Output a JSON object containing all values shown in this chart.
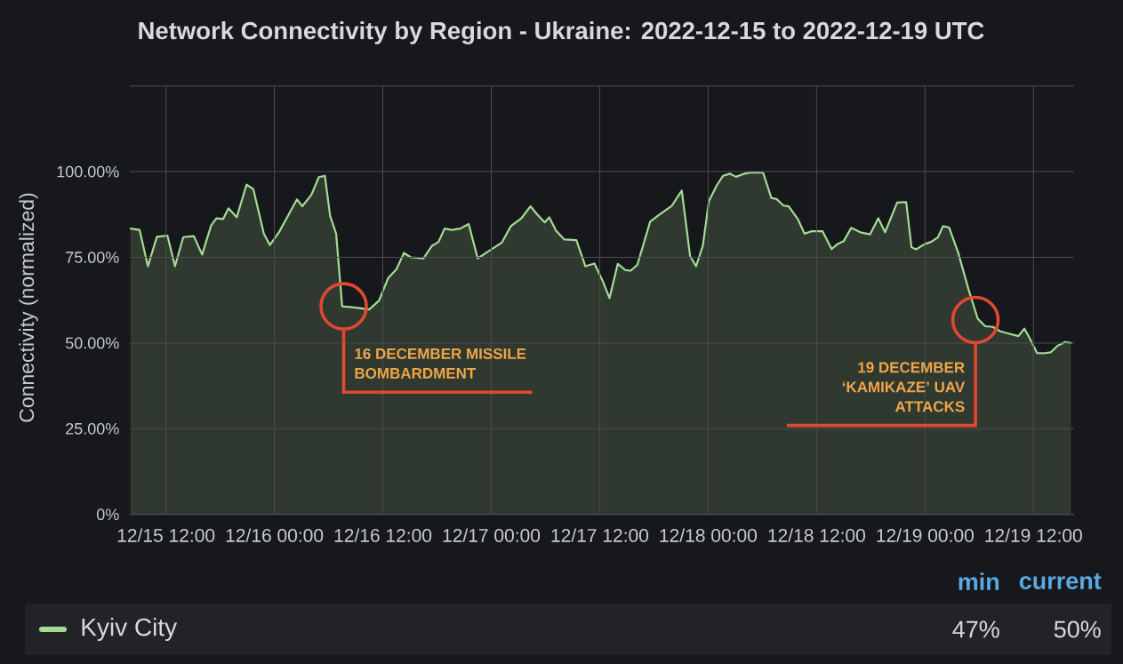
{
  "chart_data": {
    "type": "area",
    "title": "Network Connectivity by Region - Ukraine: 2022-12-15 to 2022-12-19 UTC",
    "ylabel": "Connectivity (normalized)",
    "x": [
      "2022-12-15T08:05",
      "2022-12-15T09:05",
      "2022-12-15T10:00",
      "2022-12-15T11:00",
      "2022-12-15T12:10",
      "2022-12-15T13:00",
      "2022-12-15T13:55",
      "2022-12-15T15:05",
      "2022-12-15T16:00",
      "2022-12-15T17:00",
      "2022-12-15T17:35",
      "2022-12-15T18:20",
      "2022-12-15T18:55",
      "2022-12-15T19:50",
      "2022-12-15T20:55",
      "2022-12-15T21:40",
      "2022-12-15T22:50",
      "2022-12-15T23:30",
      "2022-12-16T00:30",
      "2022-12-16T02:30",
      "2022-12-16T03:05",
      "2022-12-16T04:05",
      "2022-12-16T04:55",
      "2022-12-16T05:35",
      "2022-12-16T06:10",
      "2022-12-16T06:50",
      "2022-12-16T07:30",
      "2022-12-16T08:50",
      "2022-12-16T10:30",
      "2022-12-16T11:35",
      "2022-12-16T12:35",
      "2022-12-16T13:30",
      "2022-12-16T14:20",
      "2022-12-16T15:05",
      "2022-12-16T16:30",
      "2022-12-16T17:25",
      "2022-12-16T18:10",
      "2022-12-16T18:50",
      "2022-12-16T19:35",
      "2022-12-16T20:35",
      "2022-12-16T21:30",
      "2022-12-16T22:30",
      "2022-12-16T23:40",
      "2022-12-17T01:10",
      "2022-12-17T02:10",
      "2022-12-17T03:20",
      "2022-12-17T04:20",
      "2022-12-17T05:05",
      "2022-12-17T05:55",
      "2022-12-17T06:25",
      "2022-12-17T07:10",
      "2022-12-17T08:05",
      "2022-12-17T09:25",
      "2022-12-17T10:25",
      "2022-12-17T11:25",
      "2022-12-17T12:20",
      "2022-12-17T13:05",
      "2022-12-17T14:00",
      "2022-12-17T14:50",
      "2022-12-17T15:25",
      "2022-12-17T16:10",
      "2022-12-17T17:35",
      "2022-12-17T18:25",
      "2022-12-17T20:00",
      "2022-12-17T21:05",
      "2022-12-17T22:00",
      "2022-12-17T22:40",
      "2022-12-17T23:25",
      "2022-12-18T00:05",
      "2022-12-18T01:00",
      "2022-12-18T01:40",
      "2022-12-18T02:25",
      "2022-12-18T03:05",
      "2022-12-18T04:00",
      "2022-12-18T04:50",
      "2022-12-18T06:05",
      "2022-12-18T07:00",
      "2022-12-18T07:35",
      "2022-12-18T08:20",
      "2022-12-18T08:55",
      "2022-12-18T09:55",
      "2022-12-18T10:40",
      "2022-12-18T11:25",
      "2022-12-18T12:40",
      "2022-12-18T13:40",
      "2022-12-18T14:20",
      "2022-12-18T15:00",
      "2022-12-18T15:50",
      "2022-12-18T16:50",
      "2022-12-18T17:55",
      "2022-12-18T18:50",
      "2022-12-18T19:35",
      "2022-12-18T20:55",
      "2022-12-18T21:55",
      "2022-12-18T22:30",
      "2022-12-18T23:00",
      "2022-12-18T23:55",
      "2022-12-19T00:40",
      "2022-12-19T01:25",
      "2022-12-19T02:00",
      "2022-12-19T02:40",
      "2022-12-19T03:40",
      "2022-12-19T04:50",
      "2022-12-19T05:50",
      "2022-12-19T06:40",
      "2022-12-19T07:30",
      "2022-12-19T08:20",
      "2022-12-19T09:20",
      "2022-12-19T10:20",
      "2022-12-19T11:00",
      "2022-12-19T11:35",
      "2022-12-19T12:25",
      "2022-12-19T13:05",
      "2022-12-19T13:55",
      "2022-12-19T14:40",
      "2022-12-19T15:30",
      "2022-12-19T16:10"
    ],
    "series": [
      {
        "name": "Kyiv City",
        "color": "#a3dc95",
        "values": [
          83.4,
          83.0,
          72.4,
          81.0,
          81.3,
          72.4,
          80.9,
          81.2,
          75.8,
          84.3,
          86.4,
          86.2,
          89.3,
          86.7,
          96.2,
          94.9,
          81.9,
          78.6,
          82.3,
          91.9,
          89.9,
          93.2,
          98.4,
          98.8,
          87.1,
          81.9,
          60.7,
          60.4,
          59.8,
          62.4,
          68.9,
          71.5,
          76.3,
          75.0,
          74.7,
          78.3,
          79.5,
          83.4,
          83.0,
          83.4,
          84.7,
          74.7,
          76.7,
          79.3,
          84.1,
          86.4,
          89.9,
          87.5,
          85.2,
          86.7,
          82.8,
          80.2,
          80.0,
          72.4,
          73.2,
          68.1,
          63.1,
          73.1,
          71.3,
          71.1,
          72.8,
          85.4,
          87.1,
          90.1,
          94.5,
          75.4,
          72.4,
          78.4,
          91.4,
          96.2,
          98.8,
          99.4,
          98.5,
          99.4,
          99.8,
          99.7,
          92.3,
          92.0,
          90.1,
          89.9,
          86.2,
          81.9,
          82.6,
          82.6,
          77.4,
          78.9,
          79.7,
          83.6,
          82.3,
          81.7,
          86.4,
          82.3,
          91.0,
          91.1,
          78.0,
          77.3,
          78.8,
          79.5,
          80.8,
          84.1,
          83.7,
          76.4,
          65.5,
          57.1,
          54.9,
          54.7,
          53.4,
          52.7,
          52.0,
          54.2,
          51.4,
          47.0,
          47.0,
          47.3,
          49.2,
          50.3,
          50.0
        ]
      }
    ],
    "xlim": [
      "2022-12-15T08:00",
      "2022-12-19T16:30"
    ],
    "xticks": [
      {
        "value": "2022-12-15T12:00",
        "label": "12/15 12:00"
      },
      {
        "value": "2022-12-16T00:00",
        "label": "12/16 00:00"
      },
      {
        "value": "2022-12-16T12:00",
        "label": "12/16 12:00"
      },
      {
        "value": "2022-12-17T00:00",
        "label": "12/17 00:00"
      },
      {
        "value": "2022-12-17T12:00",
        "label": "12/17 12:00"
      },
      {
        "value": "2022-12-18T00:00",
        "label": "12/18 00:00"
      },
      {
        "value": "2022-12-18T12:00",
        "label": "12/18 12:00"
      },
      {
        "value": "2022-12-19T00:00",
        "label": "12/19 00:00"
      },
      {
        "value": "2022-12-19T12:00",
        "label": "12/19 12:00"
      }
    ],
    "ylim": [
      0,
      125
    ],
    "yticks": [
      {
        "value": 0,
        "label": "0%"
      },
      {
        "value": 25,
        "label": "25.00%"
      },
      {
        "value": 50,
        "label": "50.00%"
      },
      {
        "value": 75,
        "label": "75.00%"
      },
      {
        "value": 100,
        "label": "100.00%"
      },
      {
        "value": 125,
        "label": null
      }
    ],
    "grid": true,
    "legend": "bottom",
    "line_style": "solid",
    "annotations": [
      {
        "text": "16 DECEMBER MISSILE BOMBARDMENT",
        "x": "2022-12-16T07:40",
        "y": 60.7
      },
      {
        "text": "19 DECEMBER ‘KAMIKAZE’ UAV ATTACKS",
        "x": "2022-12-19T05:35",
        "y": 56.7
      },
      "min",
      "current",
      "47%",
      "50%"
    ]
  }
}
